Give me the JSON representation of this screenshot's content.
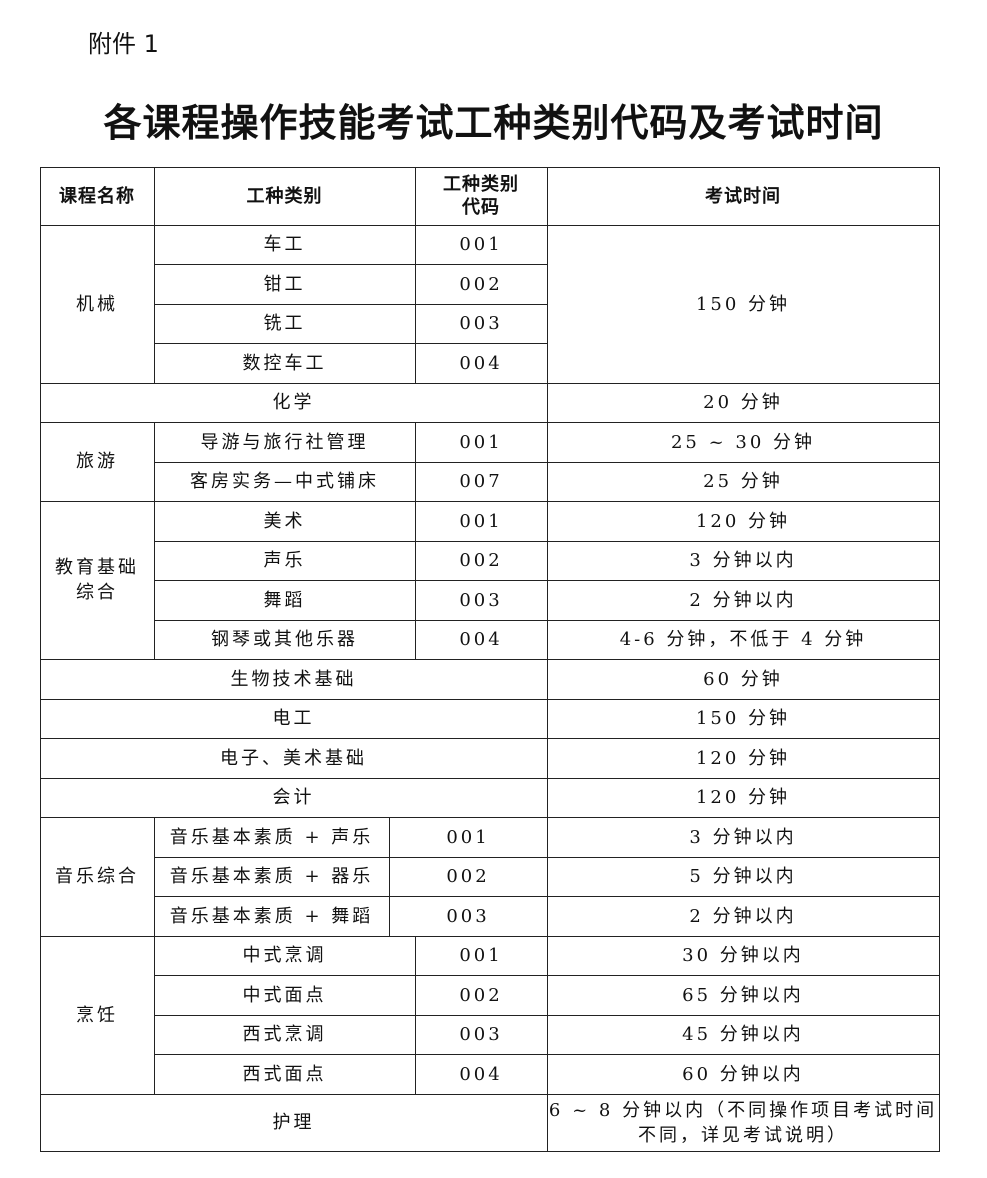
{
  "attachment_label": "附件 1",
  "title": "各课程操作技能考试工种类别代码及考试时间",
  "header": {
    "course": "课程名称",
    "type": "工种类别",
    "code": "工种类别\n代码",
    "time": "考试时间"
  },
  "mechanical": {
    "name": "机械",
    "time": "150 分钟",
    "items": [
      {
        "type": "车工",
        "code": "001"
      },
      {
        "type": "钳工",
        "code": "002"
      },
      {
        "type": "铣工",
        "code": "003"
      },
      {
        "type": "数控车工",
        "code": "004"
      }
    ]
  },
  "chemistry": {
    "name": "化学",
    "time": "20 分钟"
  },
  "tourism": {
    "name": "旅游",
    "items": [
      {
        "type": "导游与旅行社管理",
        "code": "001",
        "time": "25 ~ 30 分钟"
      },
      {
        "type": "客房实务—中式铺床",
        "code": "007",
        "time": "25 分钟"
      }
    ]
  },
  "education": {
    "name": "教育基础\n综合",
    "items": [
      {
        "type": "美术",
        "code": "001",
        "time": "120 分钟"
      },
      {
        "type": "声乐",
        "code": "002",
        "time": "3 分钟以内"
      },
      {
        "type": "舞蹈",
        "code": "003",
        "time": "2 分钟以内"
      },
      {
        "type": "钢琴或其他乐器",
        "code": "004",
        "time": "4-6 分钟，不低于 4 分钟"
      }
    ]
  },
  "biotech": {
    "name": "生物技术基础",
    "time": "60 分钟"
  },
  "electrician": {
    "name": "电工",
    "time": "150 分钟"
  },
  "electronics_art": {
    "name": "电子、美术基础",
    "time": "120 分钟"
  },
  "accounting": {
    "name": "会计",
    "time": "120 分钟"
  },
  "music": {
    "name": "音乐综合",
    "items": [
      {
        "type": "音乐基本素质 + 声乐",
        "code": "001",
        "time": "3 分钟以内"
      },
      {
        "type": "音乐基本素质 + 器乐",
        "code": "002",
        "time": "5 分钟以内"
      },
      {
        "type": "音乐基本素质 + 舞蹈",
        "code": "003",
        "time": "2 分钟以内"
      }
    ]
  },
  "cooking": {
    "name": "烹饪",
    "items": [
      {
        "type": "中式烹调",
        "code": "001",
        "time": "30 分钟以内"
      },
      {
        "type": "中式面点",
        "code": "002",
        "time": "65 分钟以内"
      },
      {
        "type": "西式烹调",
        "code": "003",
        "time": "45 分钟以内"
      },
      {
        "type": "西式面点",
        "code": "004",
        "time": "60 分钟以内"
      }
    ]
  },
  "nursing": {
    "name": "护理",
    "time": "6 ~ 8 分钟以内（不同操作项目考试时间\n不同，详见考试说明）"
  }
}
